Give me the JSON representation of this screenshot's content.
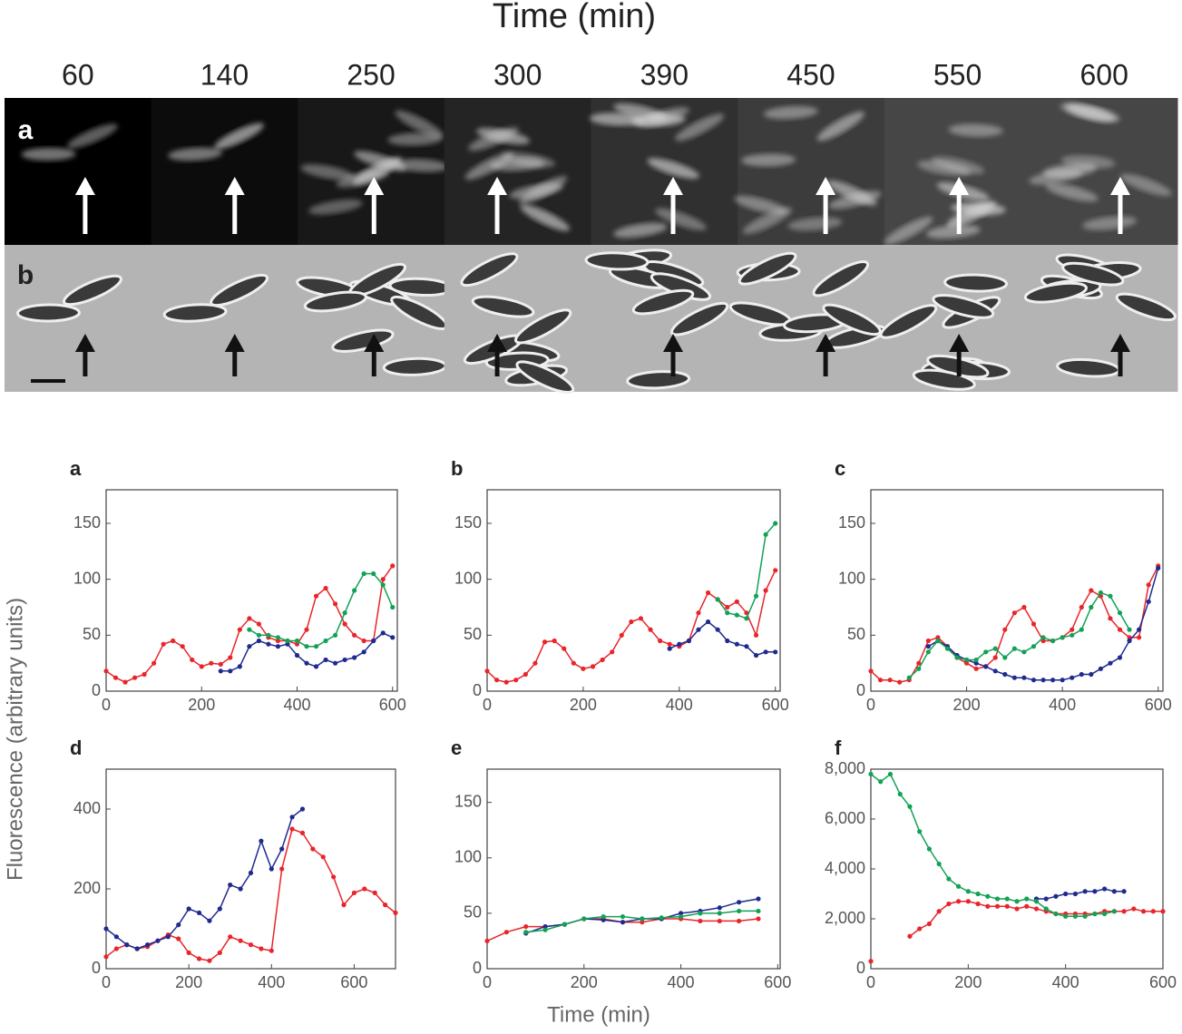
{
  "header": {
    "title": "Time (min)",
    "times": [
      60,
      140,
      250,
      300,
      390,
      450,
      550,
      600
    ],
    "row_labels": [
      "a",
      "b"
    ]
  },
  "axis_labels": {
    "y": "Fluorescence (arbitrary units)",
    "x": "Time (min)"
  },
  "chart_data": [
    {
      "type": "line",
      "title": "a",
      "x": [
        0,
        20,
        40,
        60,
        80,
        100,
        120,
        140,
        160,
        180,
        200,
        220,
        240,
        260,
        280,
        300,
        320,
        340,
        360,
        380,
        400,
        420,
        440,
        460,
        480,
        500,
        520,
        540,
        560,
        580,
        600
      ],
      "xlim": [
        0,
        610
      ],
      "ylim": [
        0,
        180
      ],
      "xticks": [
        0,
        200,
        400,
        600
      ],
      "yticks": [
        0,
        50,
        100,
        150
      ],
      "series": [
        {
          "color": "#e8252a",
          "values": [
            18,
            12,
            8,
            12,
            15,
            25,
            42,
            45,
            40,
            28,
            22,
            25,
            24,
            30,
            55,
            65,
            60,
            48,
            45,
            45,
            42,
            55,
            85,
            92,
            78,
            60,
            50,
            45,
            45,
            100,
            112
          ]
        },
        {
          "color": "#1f2a8f",
          "values": [
            null,
            null,
            null,
            null,
            null,
            null,
            null,
            null,
            null,
            null,
            null,
            null,
            18,
            18,
            22,
            40,
            45,
            42,
            40,
            42,
            32,
            25,
            22,
            28,
            25,
            28,
            30,
            35,
            45,
            52,
            48
          ]
        },
        {
          "color": "#13a155",
          "values": [
            null,
            null,
            null,
            null,
            null,
            null,
            null,
            null,
            null,
            null,
            null,
            null,
            null,
            null,
            null,
            55,
            50,
            50,
            48,
            45,
            45,
            40,
            40,
            45,
            50,
            70,
            90,
            105,
            105,
            95,
            75
          ]
        }
      ]
    },
    {
      "type": "line",
      "title": "b",
      "x": [
        0,
        20,
        40,
        60,
        80,
        100,
        120,
        140,
        160,
        180,
        200,
        220,
        240,
        260,
        280,
        300,
        320,
        340,
        360,
        380,
        400,
        420,
        440,
        460,
        480,
        500,
        520,
        540,
        560,
        580,
        600
      ],
      "xlim": [
        0,
        610
      ],
      "ylim": [
        0,
        180
      ],
      "xticks": [
        0,
        200,
        400,
        600
      ],
      "yticks": [
        0,
        50,
        100,
        150
      ],
      "series": [
        {
          "color": "#e8252a",
          "values": [
            18,
            10,
            8,
            10,
            15,
            25,
            44,
            45,
            38,
            25,
            20,
            22,
            28,
            35,
            50,
            62,
            65,
            55,
            45,
            42,
            40,
            45,
            70,
            88,
            82,
            75,
            80,
            70,
            50,
            90,
            108
          ]
        },
        {
          "color": "#1f2a8f",
          "values": [
            null,
            null,
            null,
            null,
            null,
            null,
            null,
            null,
            null,
            null,
            null,
            null,
            null,
            null,
            null,
            null,
            null,
            null,
            null,
            38,
            42,
            45,
            55,
            62,
            55,
            45,
            42,
            40,
            32,
            35,
            35
          ]
        },
        {
          "color": "#13a155",
          "values": [
            null,
            null,
            null,
            null,
            null,
            null,
            null,
            null,
            null,
            null,
            null,
            null,
            null,
            null,
            null,
            null,
            null,
            null,
            null,
            null,
            null,
            null,
            null,
            null,
            82,
            70,
            68,
            65,
            85,
            140,
            150
          ]
        }
      ]
    },
    {
      "type": "line",
      "title": "c",
      "x": [
        0,
        20,
        40,
        60,
        80,
        100,
        120,
        140,
        160,
        180,
        200,
        220,
        240,
        260,
        280,
        300,
        320,
        340,
        360,
        380,
        400,
        420,
        440,
        460,
        480,
        500,
        520,
        540,
        560,
        580,
        600
      ],
      "xlim": [
        0,
        610
      ],
      "ylim": [
        0,
        180
      ],
      "xticks": [
        0,
        200,
        400,
        600
      ],
      "yticks": [
        0,
        50,
        100,
        150
      ],
      "series": [
        {
          "color": "#e8252a",
          "values": [
            18,
            10,
            10,
            8,
            10,
            25,
            45,
            48,
            40,
            30,
            25,
            20,
            22,
            30,
            55,
            70,
            75,
            60,
            45,
            45,
            48,
            55,
            75,
            90,
            85,
            65,
            55,
            48,
            48,
            95,
            112
          ]
        },
        {
          "color": "#1f2a8f",
          "values": [
            null,
            null,
            null,
            null,
            null,
            null,
            40,
            45,
            40,
            32,
            28,
            25,
            22,
            18,
            15,
            12,
            12,
            10,
            10,
            10,
            10,
            12,
            15,
            15,
            20,
            25,
            30,
            45,
            55,
            80,
            110
          ]
        },
        {
          "color": "#13a155",
          "values": [
            null,
            null,
            null,
            null,
            12,
            20,
            35,
            45,
            38,
            30,
            28,
            28,
            35,
            38,
            30,
            38,
            35,
            40,
            48,
            45,
            48,
            50,
            55,
            75,
            88,
            85,
            70,
            55,
            null,
            null,
            null
          ]
        }
      ]
    },
    {
      "type": "line",
      "title": "d",
      "x": [
        0,
        25,
        50,
        75,
        100,
        125,
        150,
        175,
        200,
        225,
        250,
        275,
        300,
        325,
        350,
        375,
        400,
        425,
        450,
        475,
        500,
        525,
        550,
        575,
        600,
        625,
        650,
        675,
        700
      ],
      "xlim": [
        0,
        700
      ],
      "ylim": [
        0,
        500
      ],
      "xticks": [
        0,
        200,
        400,
        600
      ],
      "yticks": [
        0,
        200,
        400
      ],
      "series": [
        {
          "color": "#e8252a",
          "values": [
            30,
            50,
            60,
            50,
            55,
            70,
            85,
            75,
            40,
            25,
            20,
            40,
            80,
            70,
            60,
            50,
            45,
            250,
            350,
            340,
            300,
            280,
            230,
            160,
            190,
            200,
            190,
            160,
            140
          ]
        },
        {
          "color": "#1f2a8f",
          "values": [
            100,
            80,
            60,
            50,
            60,
            70,
            80,
            110,
            150,
            140,
            120,
            150,
            210,
            200,
            240,
            320,
            250,
            300,
            380,
            400,
            null,
            null,
            null,
            null,
            null,
            null,
            null,
            null,
            null
          ]
        }
      ]
    },
    {
      "type": "line",
      "title": "e",
      "x": [
        0,
        40,
        80,
        120,
        160,
        200,
        240,
        280,
        320,
        360,
        400,
        440,
        480,
        520,
        560,
        600
      ],
      "xlim": [
        0,
        605
      ],
      "ylim": [
        0,
        180
      ],
      "xticks": [
        0,
        200,
        400,
        600
      ],
      "yticks": [
        0,
        50,
        100,
        150
      ],
      "series": [
        {
          "color": "#e8252a",
          "values": [
            25,
            33,
            38,
            38,
            40,
            45,
            45,
            42,
            42,
            45,
            45,
            43,
            43,
            43,
            45,
            null
          ]
        },
        {
          "color": "#1f2a8f",
          "values": [
            null,
            null,
            32,
            38,
            40,
            45,
            44,
            42,
            45,
            45,
            50,
            52,
            55,
            60,
            63,
            null
          ]
        },
        {
          "color": "#13a155",
          "values": [
            null,
            null,
            33,
            35,
            40,
            45,
            47,
            47,
            45,
            46,
            47,
            50,
            50,
            52,
            52,
            null
          ]
        }
      ]
    },
    {
      "type": "line",
      "title": "f",
      "x": [
        0,
        20,
        40,
        60,
        80,
        100,
        120,
        140,
        160,
        180,
        200,
        220,
        240,
        260,
        280,
        300,
        320,
        340,
        360,
        380,
        400,
        420,
        440,
        460,
        480,
        500,
        520,
        540,
        560,
        580,
        600
      ],
      "xlim": [
        0,
        600
      ],
      "ylim": [
        0,
        8000
      ],
      "xticks": [
        0,
        200,
        400,
        600
      ],
      "yticks": [
        0,
        {
          "value": 2000,
          "label": "2,000"
        },
        {
          "value": 4000,
          "label": "4,000"
        },
        {
          "value": 6000,
          "label": "6,000"
        },
        {
          "value": 8000,
          "label": "8,000"
        }
      ],
      "series": [
        {
          "color": "#e8252a",
          "values": [
            300,
            null,
            null,
            null,
            1300,
            1600,
            1800,
            2300,
            2600,
            2700,
            2700,
            2600,
            2500,
            2500,
            2500,
            2400,
            2500,
            2400,
            2300,
            2200,
            2200,
            2200,
            2200,
            2200,
            2300,
            2300,
            2300,
            2400,
            2300,
            2300,
            2300
          ]
        },
        {
          "color": "#1f2a8f",
          "values": [
            null,
            null,
            null,
            null,
            null,
            null,
            null,
            null,
            null,
            null,
            null,
            null,
            null,
            null,
            null,
            null,
            null,
            2800,
            2800,
            2900,
            3000,
            3000,
            3100,
            3100,
            3200,
            3100,
            3100,
            null,
            null,
            null,
            null
          ]
        },
        {
          "color": "#13a155",
          "values": [
            7800,
            7500,
            7800,
            7000,
            6500,
            5500,
            4800,
            4200,
            3600,
            3300,
            3100,
            3000,
            2900,
            2800,
            2800,
            2700,
            2800,
            2700,
            2400,
            2200,
            2100,
            2100,
            2100,
            2200,
            2200,
            2300,
            null,
            null,
            null,
            null,
            null
          ]
        }
      ]
    }
  ]
}
